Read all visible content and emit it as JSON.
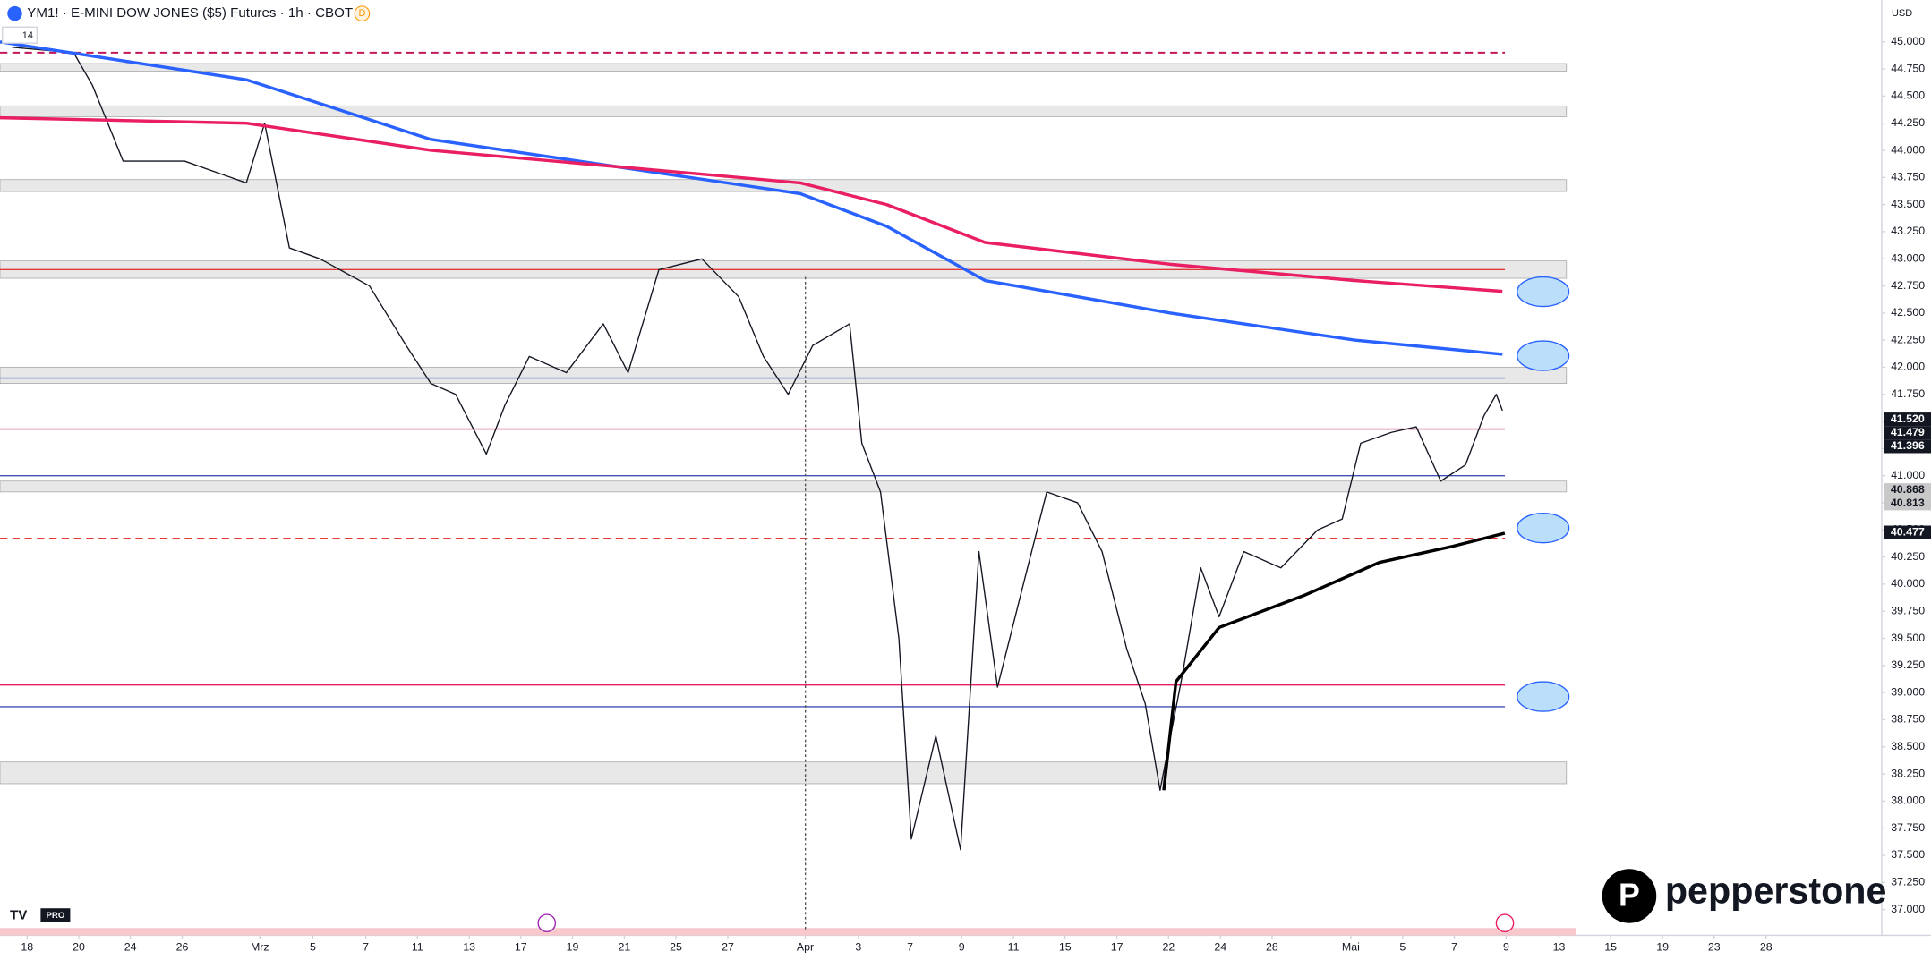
{
  "chart_data": {
    "type": "line",
    "title": "YM1! · E-MINI DOW JONES ($5) Futures · 1h · CBOT",
    "badge": "D",
    "indicator_label": "14",
    "currency": "USD",
    "brand": "pepperstone",
    "platform": "PRO",
    "xlim": [
      -0.46,
      70.28
    ],
    "ylim": [
      37,
      45.05
    ],
    "xticks": [
      {
        "value": 0.56,
        "label": "18"
      },
      {
        "value": 2.5,
        "label": "20"
      },
      {
        "value": 4.44,
        "label": "24"
      },
      {
        "value": 6.39,
        "label": "26"
      },
      {
        "value": 9.31,
        "label": "Mrz"
      },
      {
        "value": 11.3,
        "label": "5"
      },
      {
        "value": 13.29,
        "label": "7"
      },
      {
        "value": 15.23,
        "label": "11"
      },
      {
        "value": 17.18,
        "label": "13"
      },
      {
        "value": 19.12,
        "label": "17"
      },
      {
        "value": 21.06,
        "label": "19"
      },
      {
        "value": 23.01,
        "label": "21"
      },
      {
        "value": 24.95,
        "label": "25"
      },
      {
        "value": 26.9,
        "label": "27"
      },
      {
        "value": 29.81,
        "label": "Apr"
      },
      {
        "value": 31.81,
        "label": "3"
      },
      {
        "value": 33.75,
        "label": "7"
      },
      {
        "value": 35.69,
        "label": "9"
      },
      {
        "value": 37.64,
        "label": "11"
      },
      {
        "value": 39.58,
        "label": "15"
      },
      {
        "value": 41.53,
        "label": "17"
      },
      {
        "value": 43.47,
        "label": "22"
      },
      {
        "value": 45.42,
        "label": "24"
      },
      {
        "value": 47.36,
        "label": "28"
      },
      {
        "value": 50.32,
        "label": "Mai"
      },
      {
        "value": 52.27,
        "label": "5"
      },
      {
        "value": 54.21,
        "label": "7"
      },
      {
        "value": 56.16,
        "label": "9"
      },
      {
        "value": 58.15,
        "label": "13"
      },
      {
        "value": 60.09,
        "label": "15"
      },
      {
        "value": 62.04,
        "label": "19"
      },
      {
        "value": 63.98,
        "label": "23"
      },
      {
        "value": 65.93,
        "label": "28"
      }
    ],
    "yticks": [
      {
        "value": 45,
        "label": "45.000"
      },
      {
        "value": 44.75,
        "label": "44.750"
      },
      {
        "value": 44.5,
        "label": "44.500"
      },
      {
        "value": 44.25,
        "label": "44.250"
      },
      {
        "value": 44,
        "label": "44.000"
      },
      {
        "value": 43.75,
        "label": "43.750"
      },
      {
        "value": 43.5,
        "label": "43.500"
      },
      {
        "value": 43.25,
        "label": "43.250"
      },
      {
        "value": 43,
        "label": "43.000"
      },
      {
        "value": 42.75,
        "label": "42.750"
      },
      {
        "value": 42.5,
        "label": "42.500"
      },
      {
        "value": 42.25,
        "label": "42.250"
      },
      {
        "value": 42,
        "label": "42.000"
      },
      {
        "value": 41.75,
        "label": "41.750"
      },
      {
        "value": 41.5,
        "label": "41.500"
      },
      {
        "value": 41.25,
        "label": "41.250"
      },
      {
        "value": 41,
        "label": "41.000"
      },
      {
        "value": 40.75,
        "label": "40.750"
      },
      {
        "value": 40.5,
        "label": "40.500"
      },
      {
        "value": 40.25,
        "label": "40.250"
      },
      {
        "value": 40,
        "label": "40.000"
      },
      {
        "value": 39.75,
        "label": "39.750"
      },
      {
        "value": 39.5,
        "label": "39.500"
      },
      {
        "value": 39.25,
        "label": "39.250"
      },
      {
        "value": 39,
        "label": "39.000"
      },
      {
        "value": 38.75,
        "label": "38.750"
      },
      {
        "value": 38.5,
        "label": "38.500"
      },
      {
        "value": 38.25,
        "label": "38.250"
      },
      {
        "value": 38,
        "label": "38.000"
      },
      {
        "value": 37.75,
        "label": "37.750"
      },
      {
        "value": 37.5,
        "label": "37.500"
      },
      {
        "value": 37.25,
        "label": "37.250"
      },
      {
        "value": 37,
        "label": "37.000"
      }
    ],
    "series": [
      {
        "name": "YM1!",
        "color": "#131722",
        "width": 1,
        "x": [
          0,
          2.31,
          3.01,
          4.17,
          6.48,
          8.8,
          9.49,
          10.42,
          11.57,
          13.43,
          14.81,
          15.74,
          16.67,
          17.82,
          18.52,
          19.44,
          20.83,
          22.22,
          23.15,
          24.31,
          25.93,
          27.31,
          28.24,
          29.17,
          30.09,
          31.48,
          31.94,
          32.64,
          33.33,
          33.8,
          34.72,
          35.65,
          36.34,
          37.04,
          37.96,
          38.89,
          40.05,
          40.97,
          41.9,
          42.59,
          43.15,
          43.98,
          44.68,
          45.37,
          46.3,
          47.69,
          49.07,
          50.0,
          50.69,
          51.85,
          52.78,
          53.7,
          54.63,
          55.32,
          55.79,
          56.02
        ],
        "values": [
          44.95,
          44.9,
          44.6,
          43.9,
          43.9,
          43.7,
          44.25,
          43.1,
          43.0,
          42.75,
          42.2,
          41.85,
          41.75,
          41.2,
          41.65,
          42.1,
          41.95,
          42.4,
          41.95,
          42.9,
          43.0,
          42.65,
          42.1,
          41.75,
          42.2,
          42.4,
          41.3,
          40.85,
          39.5,
          37.65,
          38.6,
          37.55,
          40.3,
          39.05,
          39.95,
          40.85,
          40.75,
          40.3,
          39.4,
          38.9,
          38.1,
          39.15,
          40.15,
          39.7,
          40.3,
          40.15,
          40.5,
          40.6,
          41.3,
          41.4,
          41.45,
          40.95,
          41.1,
          41.55,
          41.75,
          41.6
        ]
      },
      {
        "name": "MA blue",
        "color": "#2962ff",
        "width": 2.5,
        "x": [
          -0.46,
          8.8,
          15.74,
          22.69,
          29.63,
          32.87,
          36.57,
          43.52,
          50.46,
          56.02
        ],
        "values": [
          45.0,
          44.65,
          44.1,
          43.85,
          43.6,
          43.3,
          42.8,
          42.5,
          42.25,
          42.12
        ]
      },
      {
        "name": "MA red",
        "color": "#e91e63",
        "width": 2.5,
        "x": [
          -0.46,
          8.8,
          15.74,
          22.69,
          29.63,
          32.87,
          36.57,
          43.52,
          50.46,
          56.02
        ],
        "values": [
          44.3,
          44.25,
          44.0,
          43.85,
          43.7,
          43.5,
          43.15,
          42.95,
          42.8,
          42.7
        ]
      },
      {
        "name": "VWAP",
        "color": "#000000",
        "width": 2.5,
        "x": [
          43.29,
          43.75,
          45.37,
          48.61,
          51.39,
          54.17,
          56.11
        ],
        "values": [
          38.1,
          39.1,
          39.6,
          39.9,
          40.2,
          40.35,
          40.47
        ]
      }
    ],
    "zones": [
      [
        44.8,
        44.73
      ],
      [
        44.41,
        44.31
      ],
      [
        43.73,
        43.62
      ],
      [
        42.98,
        42.82
      ],
      [
        42.0,
        41.85
      ],
      [
        40.95,
        40.85
      ],
      [
        38.36,
        38.16
      ]
    ],
    "levels": [
      {
        "value": 44.9,
        "color": "#c2185b",
        "dashed": true
      },
      {
        "value": 42.9,
        "color": "#e53935",
        "dashed": false
      },
      {
        "value": 41.9,
        "color": "#3f51b5",
        "dashed": false
      },
      {
        "value": 41.43,
        "color": "#c2185b",
        "dashed": false
      },
      {
        "value": 41.0,
        "color": "#3f51b5",
        "dashed": false
      },
      {
        "value": 40.42,
        "color": "#e53935",
        "dashed": true
      },
      {
        "value": 39.07,
        "color": "#e91e63",
        "dashed": false
      },
      {
        "value": 38.87,
        "color": "#3f51b5",
        "dashed": false
      }
    ],
    "price_labels": {
      "values": [
        41.52,
        41.479,
        41.396,
        40.868,
        40.813,
        40.477
      ],
      "value_labels": [
        "41.520",
        "41.479",
        "41.396",
        "40.868",
        "40.813",
        "40.477"
      ],
      "colors": [
        "#131722",
        "#131722",
        "#131722",
        "#c8c8c8",
        "#c8c8c8",
        "#131722"
      ]
    }
  }
}
